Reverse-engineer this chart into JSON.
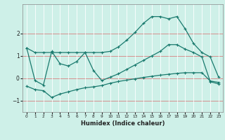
{
  "xlabel": "Humidex (Indice chaleur)",
  "bg_color": "#cef0e8",
  "line_color": "#1a7a6e",
  "xlim": [
    -0.5,
    23.5
  ],
  "ylim": [
    -1.5,
    3.3
  ],
  "yticks": [
    -1,
    0,
    1,
    2
  ],
  "xticks": [
    0,
    1,
    2,
    3,
    4,
    5,
    6,
    7,
    8,
    9,
    10,
    11,
    12,
    13,
    14,
    15,
    16,
    17,
    18,
    19,
    20,
    21,
    22,
    23
  ],
  "curve1_x": [
    0,
    1,
    2,
    3,
    4,
    5,
    6,
    7,
    8,
    9,
    10,
    11,
    12,
    13,
    14,
    15,
    16,
    17,
    18,
    19,
    20,
    21,
    22,
    23
  ],
  "curve1_y": [
    1.35,
    1.15,
    1.15,
    1.15,
    1.15,
    1.15,
    1.15,
    1.15,
    1.15,
    1.15,
    1.2,
    1.4,
    1.7,
    2.05,
    2.45,
    2.75,
    2.75,
    2.65,
    2.75,
    2.2,
    1.55,
    1.15,
    0.95,
    0.05
  ],
  "curve2_x": [
    0,
    1,
    2,
    3,
    4,
    5,
    6,
    7,
    8,
    9,
    10,
    11,
    12,
    13,
    14,
    15,
    16,
    17,
    18,
    19,
    20,
    21,
    22,
    23
  ],
  "curve2_y": [
    1.35,
    -0.1,
    -0.3,
    1.2,
    0.65,
    0.55,
    0.75,
    1.15,
    0.35,
    -0.1,
    0.05,
    0.2,
    0.4,
    0.6,
    0.8,
    1.0,
    1.2,
    1.5,
    1.5,
    1.3,
    1.15,
    0.95,
    -0.15,
    -0.25
  ],
  "curve3_x": [
    0,
    1,
    2,
    3,
    4,
    5,
    6,
    7,
    8,
    9,
    10,
    11,
    12,
    13,
    14,
    15,
    16,
    17,
    18,
    19,
    20,
    21,
    22,
    23
  ],
  "curve3_y": [
    -0.35,
    -0.5,
    -0.55,
    -0.85,
    -0.7,
    -0.6,
    -0.5,
    -0.42,
    -0.38,
    -0.32,
    -0.22,
    -0.14,
    -0.08,
    -0.02,
    0.04,
    0.09,
    0.14,
    0.18,
    0.22,
    0.25,
    0.25,
    0.25,
    -0.12,
    -0.18
  ]
}
